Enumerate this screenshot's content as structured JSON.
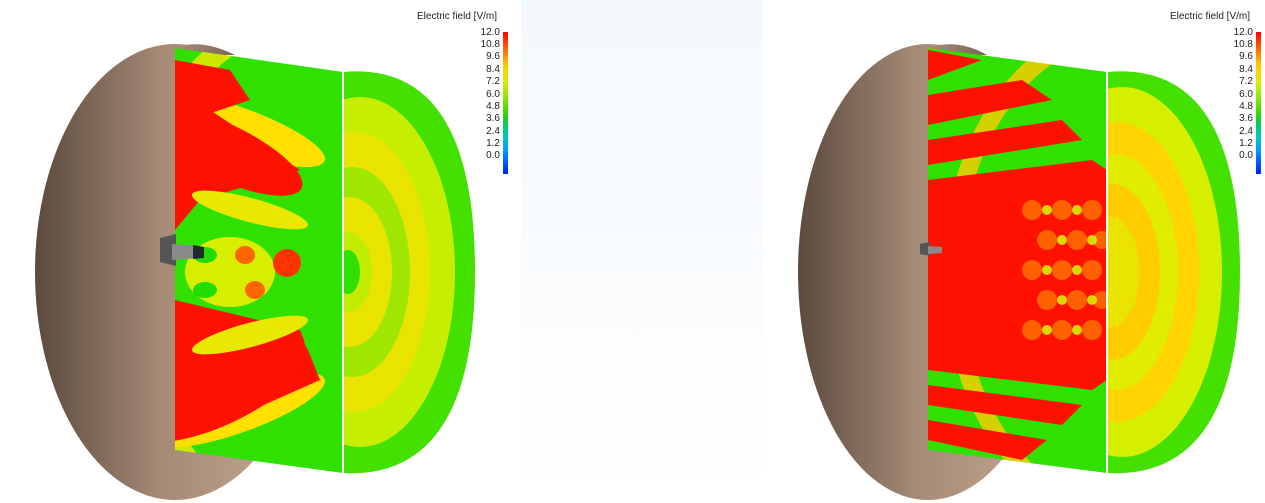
{
  "legend": {
    "title": "Electric field [V/m]",
    "ticks": [
      "12.0",
      "10.8",
      "9.6",
      "8.4",
      "7.2",
      "6.0",
      "4.8",
      "3.6",
      "2.4",
      "1.2",
      "0.0"
    ]
  },
  "colors": {
    "dish": "#b49682",
    "field_high": "#ff0000",
    "field_mid": "#f0e000",
    "field_low": "#22dd00"
  }
}
